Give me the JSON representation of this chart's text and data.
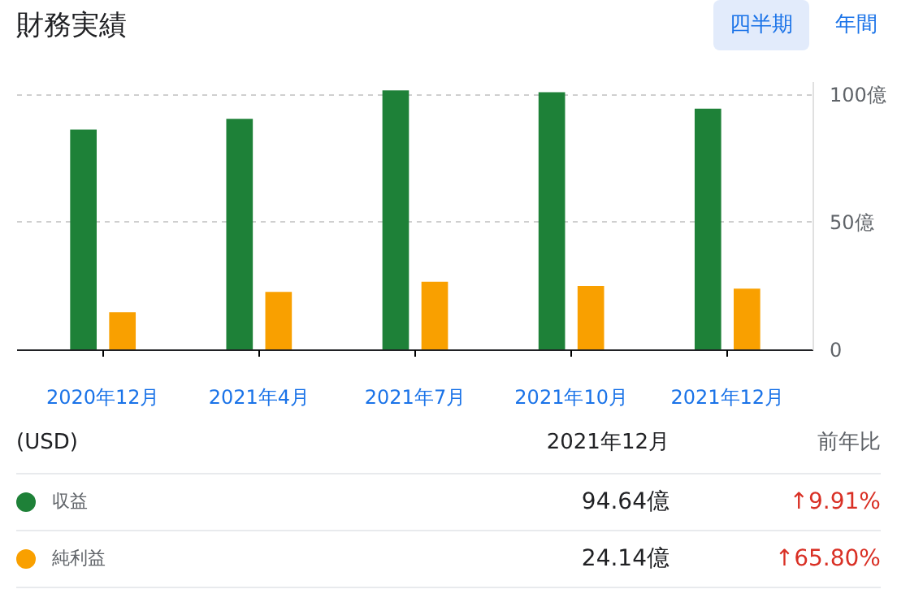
{
  "chart_data": {
    "type": "bar",
    "title": "財務実績",
    "categories": [
      "2020年12月",
      "2021年4月",
      "2021年7月",
      "2021年10月",
      "2021年12月"
    ],
    "series": [
      {
        "name": "収益",
        "color": "#1e8138",
        "values": [
          86.4,
          90.6,
          101.7,
          101.0,
          94.6
        ]
      },
      {
        "name": "純利益",
        "color": "#f9a000",
        "values": [
          14.9,
          22.8,
          26.8,
          25.1,
          24.1
        ]
      }
    ],
    "ylim": [
      0,
      105
    ],
    "yticks": [
      {
        "value": 0,
        "label": "0"
      },
      {
        "value": 50,
        "label": "50億"
      },
      {
        "value": 100,
        "label": "100億"
      }
    ],
    "grid": "y",
    "legend": "bottom",
    "annotations": [
      "四半期",
      "年間",
      "(USD)",
      "2021年12月",
      "前年比",
      "94.64億",
      "24.14億",
      "↑9.91%",
      "↑65.80%"
    ]
  }
}
